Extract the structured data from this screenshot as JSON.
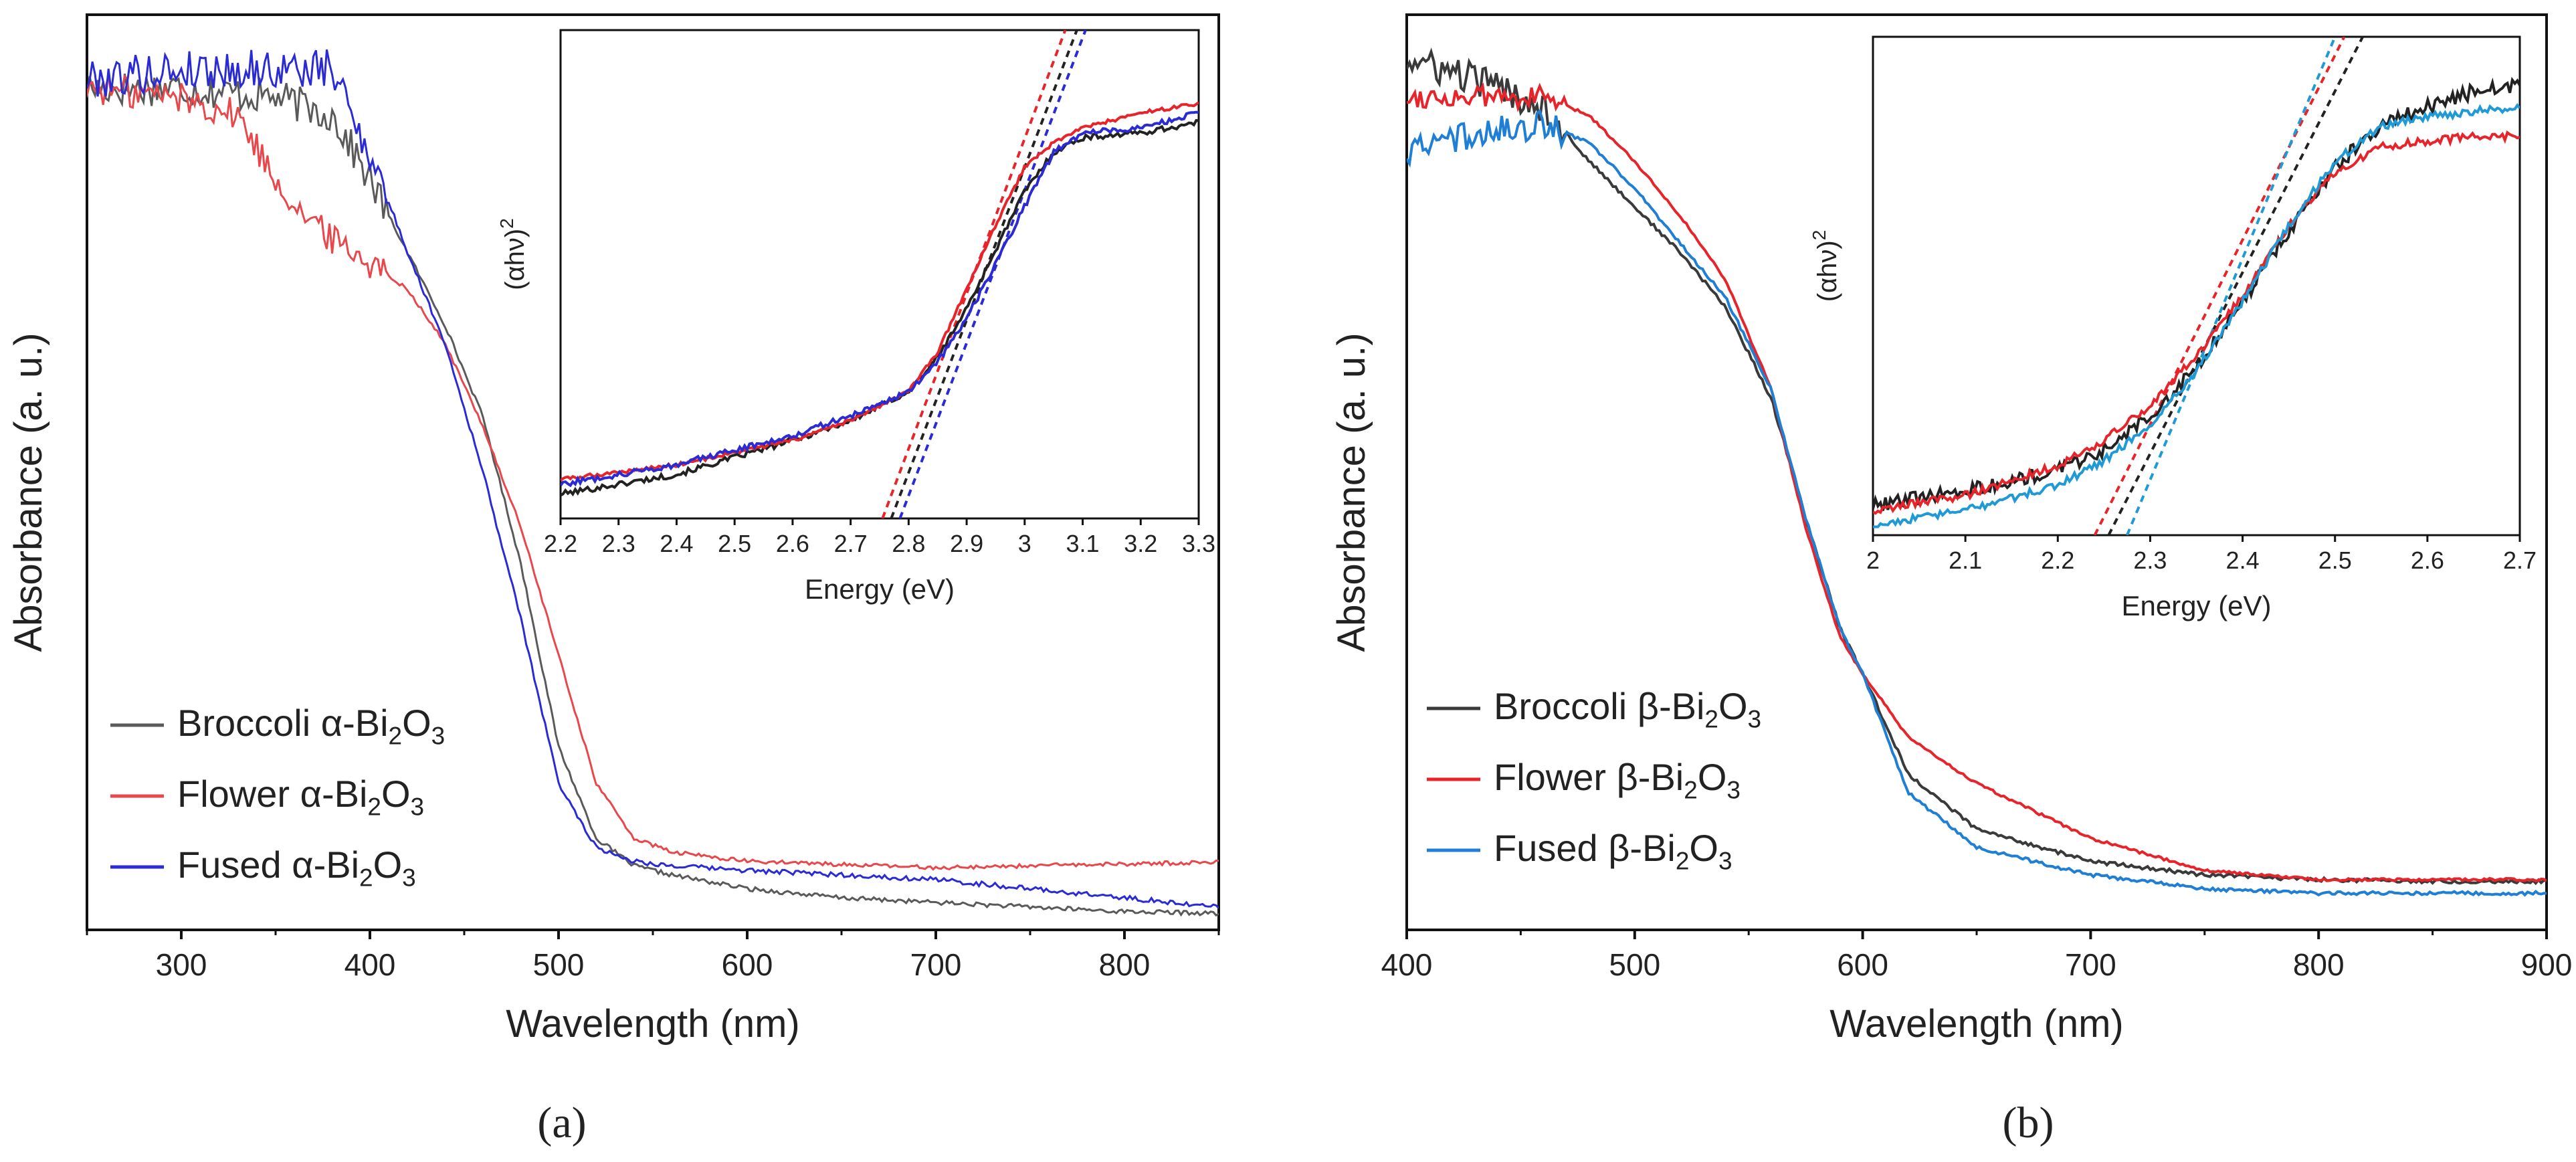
{
  "figure": {
    "panel_labels": [
      "(a)",
      "(b)"
    ]
  },
  "chart_data": [
    {
      "panel": "(a)",
      "type": "line",
      "title": "",
      "xlabel": "Wavelength (nm)",
      "ylabel": "Absorbance (a. u.)",
      "xlim": [
        250,
        850
      ],
      "ylim": [
        0,
        1.0
      ],
      "x_ticks": [
        300,
        400,
        500,
        600,
        700,
        800
      ],
      "y_ticks_shown": false,
      "legend_position": "lower-left",
      "series": [
        {
          "name": "Broccoli α-Bi2O3",
          "label_parts": [
            "Broccoli α-Bi",
            "2",
            "O",
            "3"
          ],
          "color": "#5a5a5a",
          "noise": 0.02,
          "x": [
            250,
            300,
            350,
            380,
            400,
            420,
            440,
            460,
            480,
            500,
            520,
            540,
            560,
            600,
            650,
            700,
            750,
            800,
            850
          ],
          "y": [
            0.92,
            0.92,
            0.91,
            0.89,
            0.82,
            0.74,
            0.66,
            0.56,
            0.4,
            0.2,
            0.1,
            0.07,
            0.06,
            0.045,
            0.035,
            0.03,
            0.025,
            0.02,
            0.018
          ]
        },
        {
          "name": "Flower α-Bi2O3",
          "label_parts": [
            "Flower α-Bi",
            "2",
            "O",
            "3"
          ],
          "color": "#e8474c",
          "noise": 0.018,
          "x": [
            250,
            300,
            330,
            350,
            370,
            400,
            420,
            440,
            460,
            480,
            500,
            520,
            540,
            560,
            600,
            700,
            800,
            850
          ],
          "y": [
            0.92,
            0.91,
            0.89,
            0.82,
            0.77,
            0.73,
            0.7,
            0.64,
            0.55,
            0.44,
            0.3,
            0.16,
            0.1,
            0.085,
            0.075,
            0.068,
            0.072,
            0.074
          ]
        },
        {
          "name": "Fused α-Bi2O3",
          "label_parts": [
            "Fused α-Bi",
            "2",
            "O",
            "3"
          ],
          "color": "#2b2bd6",
          "noise": 0.022,
          "x": [
            250,
            300,
            350,
            380,
            400,
            420,
            440,
            460,
            480,
            500,
            520,
            540,
            560,
            600,
            650,
            700,
            750,
            800,
            850
          ],
          "y": [
            0.93,
            0.94,
            0.94,
            0.94,
            0.85,
            0.74,
            0.64,
            0.5,
            0.34,
            0.16,
            0.09,
            0.075,
            0.07,
            0.065,
            0.06,
            0.055,
            0.045,
            0.035,
            0.025
          ]
        }
      ],
      "inset": {
        "xlabel": "Energy (eV)",
        "ylabel": "(αhν)²",
        "ylabel_parts": [
          "(αhν)",
          "2"
        ],
        "xlim": [
          2.2,
          3.3
        ],
        "ylim": [
          0,
          1.0
        ],
        "x_ticks": [
          2.2,
          2.3,
          2.4,
          2.5,
          2.6,
          2.7,
          2.8,
          2.9,
          3.0,
          3.1,
          3.2,
          3.3
        ],
        "series": [
          {
            "name": "Broccoli α-Bi2O3",
            "color": "#222222",
            "noise": 0.006,
            "x": [
              2.2,
              2.4,
              2.6,
              2.7,
              2.8,
              2.85,
              2.9,
              2.95,
              3.0,
              3.05,
              3.1,
              3.2,
              3.3
            ],
            "y": [
              0.05,
              0.09,
              0.16,
              0.2,
              0.26,
              0.33,
              0.43,
              0.55,
              0.67,
              0.75,
              0.78,
              0.79,
              0.81
            ]
          },
          {
            "name": "Flower α-Bi2O3",
            "color": "#e8242b",
            "noise": 0.004,
            "x": [
              2.2,
              2.4,
              2.6,
              2.7,
              2.8,
              2.85,
              2.9,
              2.95,
              3.0,
              3.05,
              3.1,
              3.2,
              3.3
            ],
            "y": [
              0.08,
              0.11,
              0.16,
              0.2,
              0.26,
              0.34,
              0.47,
              0.6,
              0.72,
              0.77,
              0.8,
              0.83,
              0.85
            ]
          },
          {
            "name": "Fused α-Bi2O3",
            "color": "#2b2bd6",
            "noise": 0.006,
            "x": [
              2.2,
              2.4,
              2.6,
              2.7,
              2.8,
              2.85,
              2.9,
              2.95,
              3.0,
              3.05,
              3.1,
              3.2,
              3.3
            ],
            "y": [
              0.07,
              0.11,
              0.17,
              0.21,
              0.26,
              0.32,
              0.41,
              0.52,
              0.64,
              0.75,
              0.79,
              0.8,
              0.83
            ]
          }
        ],
        "tangents": [
          {
            "color": "#e8242b",
            "x": [
              2.755,
              3.07
            ],
            "y": [
              0.0,
              1.0
            ]
          },
          {
            "color": "#222222",
            "x": [
              2.77,
              3.09
            ],
            "y": [
              0.0,
              1.0
            ]
          },
          {
            "color": "#2b2bd6",
            "x": [
              2.785,
              3.105
            ],
            "y": [
              0.0,
              1.0
            ]
          }
        ]
      }
    },
    {
      "panel": "(b)",
      "type": "line",
      "title": "",
      "xlabel": "Wavelength (nm)",
      "ylabel": "Absorbance (a. u.)",
      "xlim": [
        400,
        900
      ],
      "ylim": [
        0,
        1.0
      ],
      "x_ticks": [
        400,
        500,
        600,
        700,
        800,
        900
      ],
      "y_ticks_shown": false,
      "legend_position": "lower-left",
      "series": [
        {
          "name": "Broccoli β-Bi2O3",
          "label_parts": [
            "Broccoli β-Bi",
            "2",
            "O",
            "3"
          ],
          "color": "#3a3a3a",
          "noise": 0.018,
          "x": [
            400,
            430,
            460,
            480,
            500,
            520,
            540,
            560,
            575,
            590,
            600,
            620,
            650,
            700,
            750,
            800,
            850,
            900
          ],
          "y": [
            0.95,
            0.93,
            0.9,
            0.84,
            0.79,
            0.74,
            0.68,
            0.58,
            0.45,
            0.33,
            0.28,
            0.17,
            0.11,
            0.075,
            0.06,
            0.055,
            0.053,
            0.053
          ]
        },
        {
          "name": "Flower β-Bi2O3",
          "label_parts": [
            "Flower β-Bi",
            "2",
            "O",
            "3"
          ],
          "color": "#e8242b",
          "noise": 0.012,
          "x": [
            400,
            430,
            460,
            480,
            500,
            520,
            540,
            560,
            575,
            590,
            600,
            620,
            650,
            700,
            750,
            800,
            850,
            900
          ],
          "y": [
            0.91,
            0.91,
            0.91,
            0.89,
            0.84,
            0.78,
            0.71,
            0.59,
            0.44,
            0.32,
            0.28,
            0.21,
            0.16,
            0.1,
            0.065,
            0.055,
            0.055,
            0.055
          ]
        },
        {
          "name": "Fused β-Bi2O3",
          "label_parts": [
            "Fused β-Bi",
            "2",
            "O",
            "3"
          ],
          "color": "#1f7fd4",
          "noise": 0.016,
          "x": [
            400,
            430,
            460,
            480,
            500,
            520,
            540,
            560,
            575,
            590,
            600,
            620,
            650,
            700,
            750,
            800,
            850,
            900
          ],
          "y": [
            0.85,
            0.87,
            0.88,
            0.86,
            0.81,
            0.75,
            0.69,
            0.59,
            0.45,
            0.33,
            0.28,
            0.15,
            0.09,
            0.06,
            0.045,
            0.04,
            0.04,
            0.04
          ]
        }
      ],
      "inset": {
        "xlabel": "Energy (eV)",
        "ylabel": "(αhν)²",
        "ylabel_parts": [
          "(αhν)",
          "2"
        ],
        "xlim": [
          2.0,
          2.7
        ],
        "ylim": [
          0,
          1.0
        ],
        "x_ticks": [
          2.0,
          2.1,
          2.2,
          2.3,
          2.4,
          2.5,
          2.6,
          2.7
        ],
        "series": [
          {
            "name": "Broccoli β-Bi2O3",
            "color": "#222222",
            "noise": 0.015,
            "x": [
              2.0,
              2.1,
              2.2,
              2.25,
              2.3,
              2.35,
              2.4,
              2.45,
              2.5,
              2.55,
              2.6,
              2.65,
              2.7
            ],
            "y": [
              0.06,
              0.09,
              0.13,
              0.17,
              0.24,
              0.34,
              0.47,
              0.61,
              0.74,
              0.82,
              0.86,
              0.89,
              0.9
            ]
          },
          {
            "name": "Flower β-Bi2O3",
            "color": "#e8242b",
            "noise": 0.008,
            "x": [
              2.0,
              2.1,
              2.2,
              2.25,
              2.3,
              2.35,
              2.4,
              2.45,
              2.5,
              2.55,
              2.6,
              2.65,
              2.7
            ],
            "y": [
              0.05,
              0.08,
              0.14,
              0.19,
              0.26,
              0.36,
              0.48,
              0.62,
              0.73,
              0.78,
              0.79,
              0.8,
              0.8
            ]
          },
          {
            "name": "Fused β-Bi2O3",
            "color": "#1f9ad6",
            "noise": 0.008,
            "x": [
              2.0,
              2.1,
              2.2,
              2.25,
              2.3,
              2.35,
              2.4,
              2.45,
              2.5,
              2.55,
              2.6,
              2.65,
              2.7
            ],
            "y": [
              0.02,
              0.05,
              0.1,
              0.15,
              0.22,
              0.33,
              0.47,
              0.62,
              0.75,
              0.82,
              0.84,
              0.85,
              0.86
            ]
          }
        ],
        "tangents": [
          {
            "color": "#e8242b",
            "x": [
              2.24,
              2.51
            ],
            "y": [
              0.0,
              1.0
            ]
          },
          {
            "color": "#222222",
            "x": [
              2.255,
              2.53
            ],
            "y": [
              0.0,
              1.0
            ]
          },
          {
            "color": "#1f9ad6",
            "x": [
              2.275,
              2.5
            ],
            "y": [
              0.0,
              1.0
            ]
          }
        ]
      }
    }
  ]
}
